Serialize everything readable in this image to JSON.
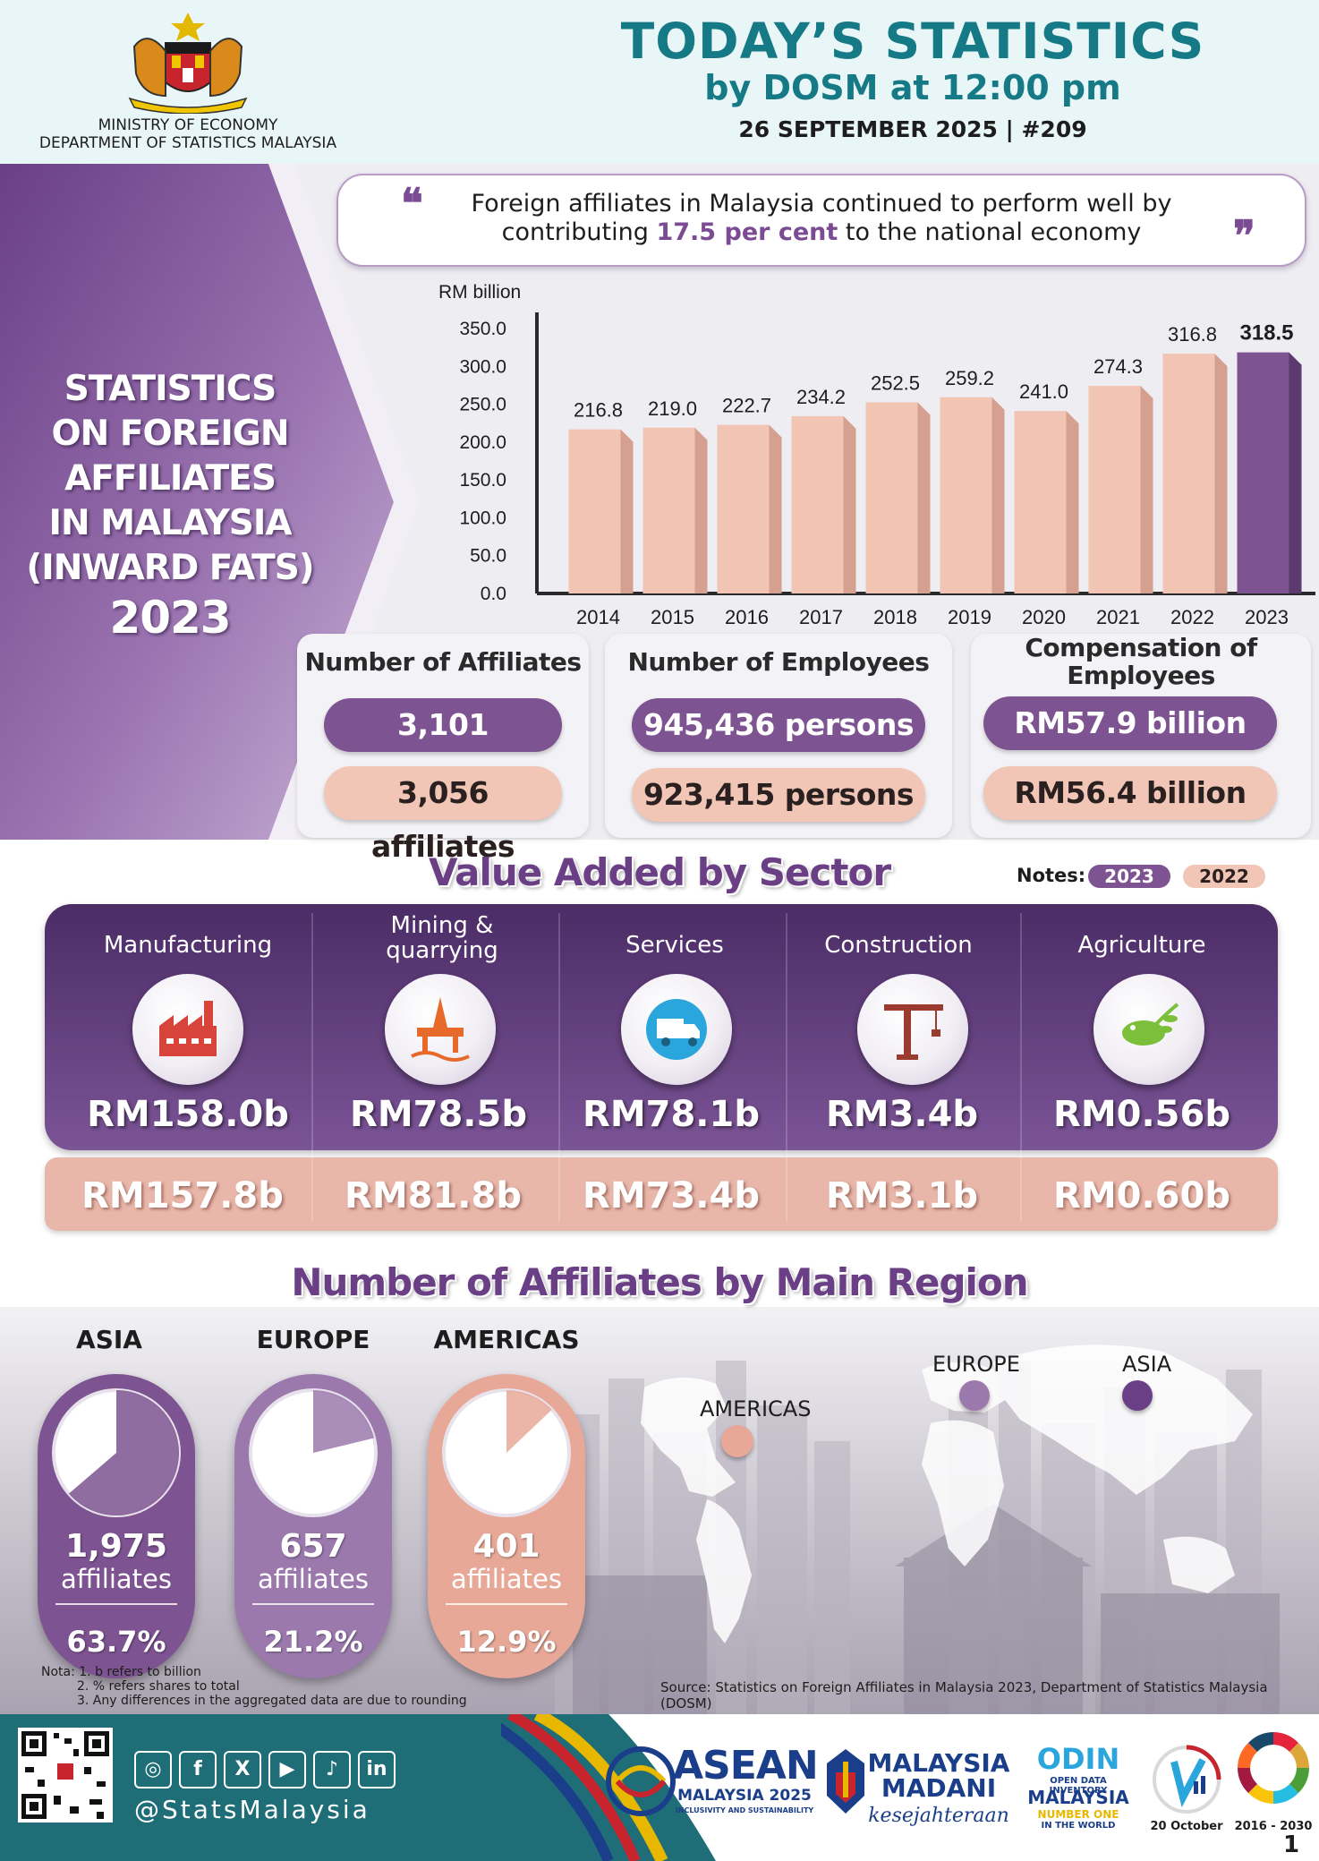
{
  "header": {
    "ministry_line1": "MINISTRY OF ECONOMY",
    "ministry_line2": "DEPARTMENT OF STATISTICS MALAYSIA",
    "title": "TODAY’S STATISTICS",
    "subtitle": "by DOSM at 12:00 pm",
    "date_line": "26 SEPTEMBER 2025  |   #209"
  },
  "hero": {
    "lines": [
      "STATISTICS",
      "ON FOREIGN",
      "AFFILIATES",
      "IN MALAYSIA",
      "(INWARD FATS)",
      "2023"
    ]
  },
  "quote": {
    "line1": "Foreign affiliates in Malaysia continued to perform well by",
    "line2_pre": "contributing ",
    "line2_hl": "17.5 per cent",
    "line2_post": " to the national economy",
    "open_mark": "❝",
    "close_mark": "❞"
  },
  "chart_data": {
    "type": "bar",
    "ylabel": "RM billion",
    "ylim": [
      0,
      350
    ],
    "yticks": [
      "350.0",
      "300.0",
      "250.0",
      "200.0",
      "150.0",
      "100.0",
      "50.0",
      "0.0"
    ],
    "categories": [
      "2014",
      "2015",
      "2016",
      "2017",
      "2018",
      "2019",
      "2020",
      "2021",
      "2022",
      "2023"
    ],
    "values": [
      216.8,
      219.0,
      222.7,
      234.2,
      252.5,
      259.2,
      241.0,
      274.3,
      316.8,
      318.5
    ],
    "labels": [
      "216.8",
      "219.0",
      "222.7",
      "234.2",
      "252.5",
      "259.2",
      "241.0",
      "274.3",
      "316.8",
      "318.5"
    ],
    "highlight_index": 9,
    "colors": {
      "bar": "#f2c4b4",
      "bar_side": "#d6a090",
      "highlight": "#7d5391",
      "highlight_side": "#5c3a70"
    }
  },
  "stats": {
    "affiliates": {
      "title": "Number of Affiliates",
      "v2023": "3,101 affiliates",
      "v2022": "3,056 affiliates"
    },
    "employees": {
      "title": "Number of Employees",
      "v2023": "945,436 persons",
      "v2022": "923,415 persons"
    },
    "compensation": {
      "title_line1": "Compensation of",
      "title_line2": "Employees",
      "v2023": "RM57.9 billion",
      "v2022": "RM56.4 billion"
    }
  },
  "value_added": {
    "title": "Value Added by Sector",
    "notes_label": "Notes:",
    "note_2023": "2023",
    "note_2022": "2022",
    "sectors": [
      {
        "name_line1": "Manufacturing",
        "name_line2": "",
        "icon": "factory-icon",
        "v2023": "RM158.0b",
        "v2022": "RM157.8b"
      },
      {
        "name_line1": "Mining &",
        "name_line2": "quarrying",
        "icon": "oil-rig-icon",
        "v2023": "RM78.5b",
        "v2022": "RM81.8b"
      },
      {
        "name_line1": "Services",
        "name_line2": "",
        "icon": "delivery-truck-icon",
        "v2023": "RM78.1b",
        "v2022": "RM73.4b"
      },
      {
        "name_line1": "Construction",
        "name_line2": "",
        "icon": "crane-icon",
        "v2023": "RM3.4b",
        "v2022": "RM3.1b"
      },
      {
        "name_line1": "Agriculture",
        "name_line2": "",
        "icon": "leaf-icon",
        "v2023": "RM0.56b",
        "v2022": "RM0.60b"
      }
    ]
  },
  "regions": {
    "title": "Number of Affiliates by Main Region",
    "items": [
      {
        "name": "ASIA",
        "count": "1,975",
        "unit": "affiliates",
        "share": "63.7%",
        "share_value": 63.7,
        "color": "#7d5391"
      },
      {
        "name": "EUROPE",
        "count": "657",
        "unit": "affiliates",
        "share": "21.2%",
        "share_value": 21.2,
        "color": "#9b79ad"
      },
      {
        "name": "AMERICAS",
        "count": "401",
        "unit": "affiliates",
        "share": "12.9%",
        "share_value": 12.9,
        "color": "#e8a898"
      }
    ],
    "map_labels": {
      "americas": "AMERICAS",
      "europe": "EUROPE",
      "asia": "ASIA"
    }
  },
  "footnotes": {
    "line1": "Nota: 1.  b refers to billion",
    "line2": "2. % refers shares to total",
    "line3": "3. Any differences in the aggregated data are due to rounding",
    "source": "Source: Statistics on Foreign Affiliates in Malaysia 2023, Department of Statistics Malaysia (DOSM)"
  },
  "footer": {
    "social_icons": [
      "instagram-icon",
      "facebook-icon",
      "x-icon",
      "youtube-icon",
      "tiktok-icon",
      "linkedin-icon"
    ],
    "social_glyphs": [
      "◎",
      "f",
      "X",
      "▶",
      "♪",
      "in"
    ],
    "handle": "@StatsMalaysia",
    "asean_line1": "ASEAN",
    "asean_line2": "MALAYSIA 2025",
    "asean_line3": "INCLUSIVITY AND SUSTAINABILITY",
    "madani_line1": "MALAYSIA",
    "madani_line2": "MADANI",
    "madani_line3": "kesejahteraan",
    "odin_line1": "ODIN",
    "odin_line2": "OPEN DATA INVENTORY",
    "odin_line3": "MALAYSIA",
    "odin_line4": "NUMBER ONE",
    "odin_line5": "IN THE WORLD",
    "statday_caption": "20 October",
    "sdg_caption": "2016 - 2030",
    "page": "1"
  }
}
